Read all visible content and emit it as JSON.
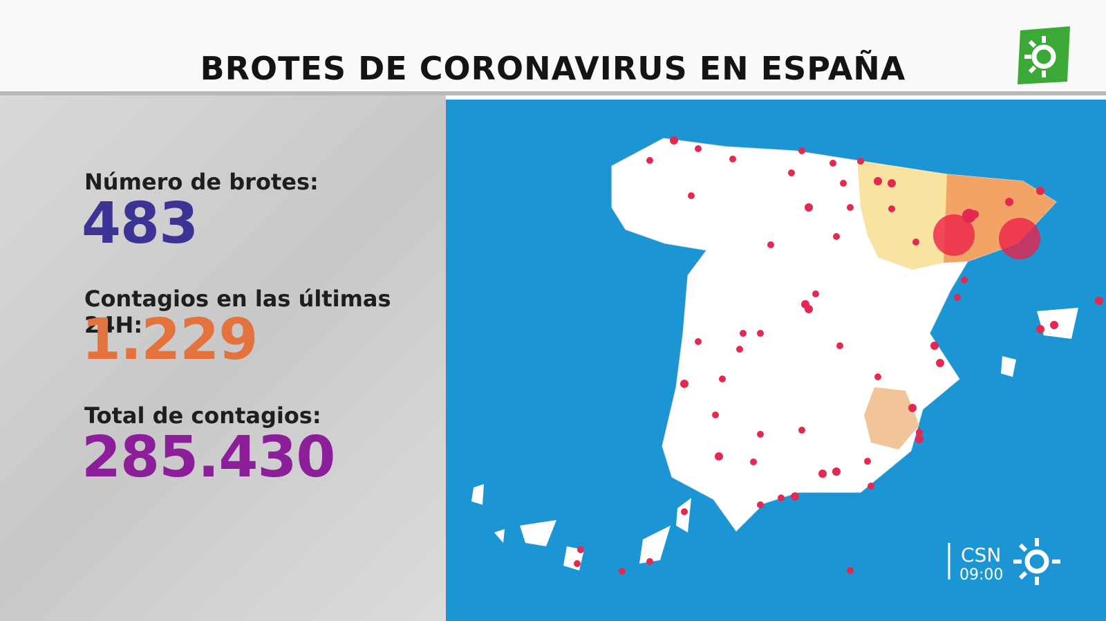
{
  "header": {
    "title": "BROTES DE CORONAVIRUS EN ESPAÑA"
  },
  "stats": [
    {
      "label": "Número de brotes:",
      "value": "483"
    },
    {
      "label": "Contagios en las últimas 24H:",
      "value": "1.229"
    },
    {
      "label": "Total de contagios:",
      "value": "285.430"
    }
  ],
  "branding": {
    "program": "CSN",
    "time": "09:00"
  }
}
